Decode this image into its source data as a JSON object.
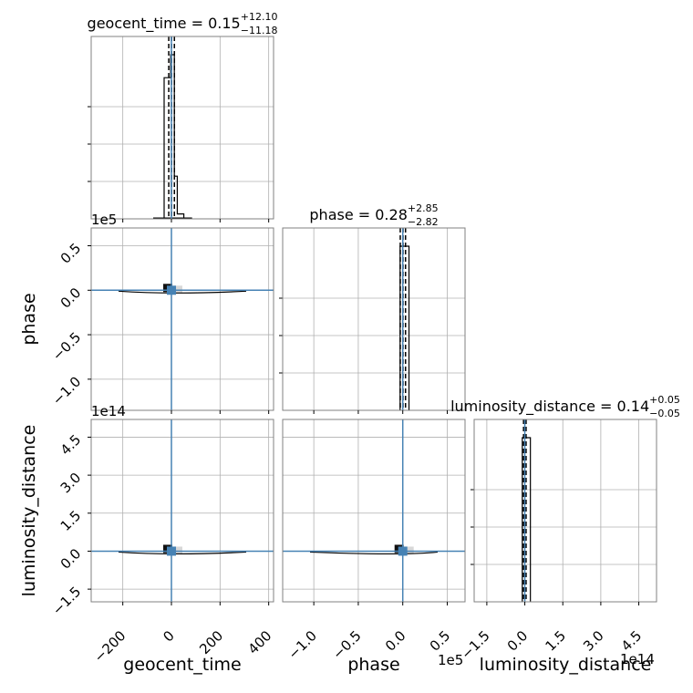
{
  "colors": {
    "truth": "#4682b4",
    "hist": "#000000",
    "grid": "#b0b0b0",
    "frame": "#808080",
    "background": "#ffffff"
  },
  "chart_data": {
    "type": "corner",
    "parameters": [
      {
        "name": "geocent_time",
        "axis_label": "geocent_time",
        "title_base": "geocent_time = 0.15",
        "title_plus": "+12.10",
        "title_minus": "−11.18",
        "median": 0.15,
        "err_plus": 12.1,
        "err_minus": 11.18,
        "truth": 0,
        "range": [
          -330,
          420
        ],
        "ticks": [
          -200,
          0,
          200,
          400
        ],
        "tick_labels": [
          "−200",
          "0",
          "200",
          "400"
        ],
        "scale_label": "",
        "hist": {
          "edges": [
            -30,
            -3,
            12,
            24,
            51
          ],
          "heights": [
            0.86,
            1.0,
            0.26,
            0.03
          ]
        },
        "quantile_lines": [
          -11.0,
          0.15,
          12.2
        ]
      },
      {
        "name": "phase",
        "axis_label": "phase",
        "title_base": "phase = 0.28",
        "title_plus": "+2.85",
        "title_minus": "−2.82",
        "median": 0.28,
        "err_plus": 2.85,
        "err_minus": 2.82,
        "truth": 0,
        "range": [
          -1.35,
          0.7
        ],
        "ticks": [
          -1.0,
          -0.5,
          0.0,
          0.5
        ],
        "tick_labels": [
          "−1.0",
          "−0.5",
          "0.0",
          "0.5"
        ],
        "scale_label": "1e5",
        "hist": {
          "edges": [
            -0.03,
            0.0,
            0.07
          ],
          "heights": [
            1.0,
            1.0
          ]
        },
        "quantile_lines": [
          -0.028,
          0.003,
          0.031
        ]
      },
      {
        "name": "luminosity_distance",
        "axis_label": "luminosity_distance",
        "title_base": "luminosity_distance = 0.14",
        "title_plus": "+0.05",
        "title_minus": "−0.05",
        "median": 0.14,
        "err_plus": 0.05,
        "err_minus": 0.05,
        "truth": 0,
        "range": [
          -2.0,
          5.2
        ],
        "ticks": [
          -1.5,
          0.0,
          1.5,
          3.0,
          4.5
        ],
        "tick_labels": [
          "−1.5",
          "0.0",
          "1.5",
          "3.0",
          "4.5"
        ],
        "scale_label": "1e14",
        "hist": {
          "edges": [
            -0.1,
            0.0,
            0.22
          ],
          "heights": [
            1.0,
            1.0
          ]
        },
        "quantile_lines": [
          -0.05,
          0.0,
          0.05
        ]
      }
    ]
  }
}
